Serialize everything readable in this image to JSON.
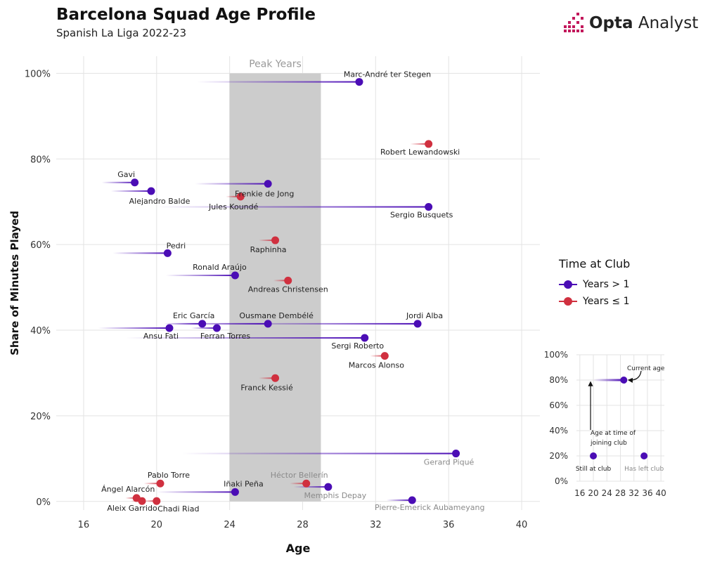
{
  "header": {
    "title": "Barcelona Squad Age Profile",
    "subtitle": "Spanish La Liga 2022-23",
    "brand_bold": "Opta",
    "brand_light": " Analyst"
  },
  "colors": {
    "years_over_1": "#4B0DB5",
    "years_under_1": "#D0303F",
    "peak_band": "#CCCCCC",
    "grid": "#E3E3E3",
    "brand_pink": "#C2185B"
  },
  "legend": {
    "title": "Time at Club",
    "items": [
      {
        "label": "Years > 1",
        "group": "over"
      },
      {
        "label": "Years ≤ 1",
        "group": "under"
      }
    ]
  },
  "chart_data": {
    "type": "scatter",
    "title": "Barcelona Squad Age Profile",
    "subtitle": "Spanish La Liga 2022-23",
    "xlabel": "Age",
    "ylabel": "Share of Minutes Played",
    "xlim": [
      14.5,
      41
    ],
    "ylim": [
      -2,
      104
    ],
    "xticks": [
      16,
      20,
      24,
      28,
      32,
      36,
      40
    ],
    "yticks": [
      0,
      20,
      40,
      60,
      80,
      100
    ],
    "ytick_labels": [
      "0%",
      "20%",
      "40%",
      "60%",
      "80%",
      "100%"
    ],
    "peak_years": {
      "label": "Peak Years",
      "from": 24,
      "to": 29
    },
    "players": [
      {
        "name": "Marc-André ter Stegen",
        "join_age": 22.2,
        "age": 31.1,
        "share": 98,
        "group": "over",
        "left_club": false
      },
      {
        "name": "Robert Lewandowski",
        "join_age": 33.9,
        "age": 34.9,
        "share": 83.5,
        "group": "under",
        "left_club": false
      },
      {
        "name": "Gavi",
        "join_age": 17.0,
        "age": 18.8,
        "share": 74.5,
        "group": "over",
        "left_club": false
      },
      {
        "name": "Frenkie de Jong",
        "join_age": 22.1,
        "age": 26.1,
        "share": 74.2,
        "group": "over",
        "left_club": false
      },
      {
        "name": "Alejandro Balde",
        "join_age": 17.5,
        "age": 19.7,
        "share": 72.5,
        "group": "over",
        "left_club": false
      },
      {
        "name": "Jules Koundé",
        "join_age": 23.8,
        "age": 24.6,
        "share": 71.2,
        "group": "under",
        "left_club": false
      },
      {
        "name": "Sergio Busquets",
        "join_age": 20.0,
        "age": 34.9,
        "share": 68.8,
        "group": "over",
        "left_club": false
      },
      {
        "name": "Raphinha",
        "join_age": 25.6,
        "age": 26.5,
        "share": 61,
        "group": "under",
        "left_club": false
      },
      {
        "name": "Pedri",
        "join_age": 17.6,
        "age": 20.6,
        "share": 58,
        "group": "over",
        "left_club": false
      },
      {
        "name": "Ronald Araújo",
        "join_age": 20.5,
        "age": 24.3,
        "share": 52.8,
        "group": "over",
        "left_club": false
      },
      {
        "name": "Andreas Christensen",
        "join_age": 26.4,
        "age": 27.2,
        "share": 51.6,
        "group": "under",
        "left_club": false
      },
      {
        "name": "Eric García",
        "join_age": 20.4,
        "age": 22.5,
        "share": 41.5,
        "group": "over",
        "left_club": false
      },
      {
        "name": "Ousmane Dembélé",
        "join_age": 20.5,
        "age": 26.1,
        "share": 41.5,
        "group": "over",
        "left_club": false
      },
      {
        "name": "Jordi Alba",
        "join_age": 23.2,
        "age": 34.3,
        "share": 41.5,
        "group": "over",
        "left_club": false
      },
      {
        "name": "Ansu Fati",
        "join_age": 16.8,
        "age": 20.7,
        "share": 40.5,
        "group": "over",
        "left_club": false
      },
      {
        "name": "Ferran Torres",
        "join_age": 21.9,
        "age": 23.3,
        "share": 40.5,
        "group": "over",
        "left_club": false
      },
      {
        "name": "Sergi Roberto",
        "join_age": 18.3,
        "age": 31.4,
        "share": 38.2,
        "group": "over",
        "left_club": false
      },
      {
        "name": "Marcos Alonso",
        "join_age": 31.7,
        "age": 32.5,
        "share": 34,
        "group": "under",
        "left_club": false
      },
      {
        "name": "Franck Kessié",
        "join_age": 25.6,
        "age": 26.5,
        "share": 28.8,
        "group": "under",
        "left_club": false
      },
      {
        "name": "Gerard Piqué",
        "join_age": 21.4,
        "age": 36.4,
        "share": 11.2,
        "group": "over",
        "left_club": true
      },
      {
        "name": "Pablo Torre",
        "join_age": 19.3,
        "age": 20.2,
        "share": 4.2,
        "group": "under",
        "left_club": false
      },
      {
        "name": "Iñaki Peña",
        "join_age": 20.0,
        "age": 24.3,
        "share": 2.2,
        "group": "over",
        "left_club": false
      },
      {
        "name": "Héctor Bellerín",
        "join_age": 27.3,
        "age": 28.2,
        "share": 4.2,
        "group": "under",
        "left_club": true
      },
      {
        "name": "Memphis Depay",
        "join_age": 27.5,
        "age": 29.4,
        "share": 3.4,
        "group": "over",
        "left_club": true
      },
      {
        "name": "Ángel Alarcón",
        "join_age": 18.3,
        "age": 18.9,
        "share": 0.8,
        "group": "under",
        "left_club": false
      },
      {
        "name": "Aleix Garrido",
        "join_age": 18.6,
        "age": 19.2,
        "share": 0.1,
        "group": "under",
        "left_club": false
      },
      {
        "name": "Chadi Riad",
        "join_age": 19.3,
        "age": 20.0,
        "share": 0.1,
        "group": "under",
        "left_club": false
      },
      {
        "name": "Pierre-Emerick Aubameyang",
        "join_age": 32.6,
        "age": 34.0,
        "share": 0.3,
        "group": "over",
        "left_club": true
      }
    ],
    "inset": {
      "xticks": [
        16,
        20,
        24,
        28,
        32,
        36,
        40
      ],
      "yticks": [
        0,
        20,
        40,
        60,
        80,
        100
      ],
      "ytick_labels": [
        "0%",
        "20%",
        "40%",
        "60%",
        "80%",
        "100%"
      ],
      "xlim": [
        15,
        41
      ],
      "ylim": [
        0,
        100
      ],
      "example_line": {
        "join_age": 20,
        "age": 29,
        "share": 80
      },
      "annotations": {
        "current_age": "Current age",
        "join_age_line1": "Age at time of",
        "join_age_line2": "joining club",
        "still_at_club": "Still at club",
        "has_left_club": "Has left club"
      },
      "still_dot": {
        "age": 20,
        "share": 20
      },
      "left_dot": {
        "age": 35,
        "share": 20
      }
    }
  }
}
